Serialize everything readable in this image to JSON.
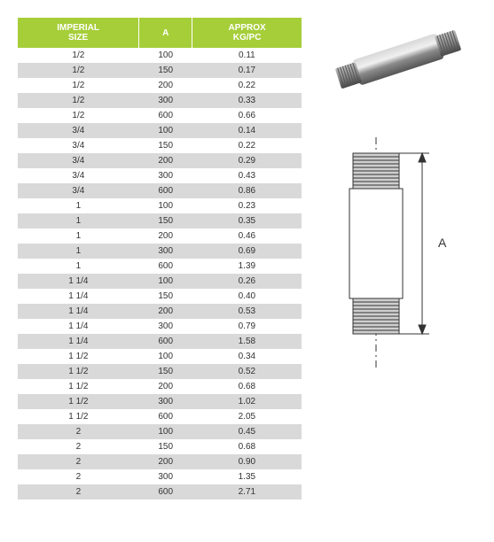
{
  "table": {
    "header_bg": "#a6ce39",
    "header_fg": "#ffffff",
    "row_odd_bg": "#ffffff",
    "row_even_bg": "#d9d9d9",
    "columns": [
      "IMPERIAL\nSIZE",
      "A",
      "APPROX\nKG/PC"
    ],
    "rows": [
      [
        "1/2",
        "100",
        "0.11"
      ],
      [
        "1/2",
        "150",
        "0.17"
      ],
      [
        "1/2",
        "200",
        "0.22"
      ],
      [
        "1/2",
        "300",
        "0.33"
      ],
      [
        "1/2",
        "600",
        "0.66"
      ],
      [
        "3/4",
        "100",
        "0.14"
      ],
      [
        "3/4",
        "150",
        "0.22"
      ],
      [
        "3/4",
        "200",
        "0.29"
      ],
      [
        "3/4",
        "300",
        "0.43"
      ],
      [
        "3/4",
        "600",
        "0.86"
      ],
      [
        "1",
        "100",
        "0.23"
      ],
      [
        "1",
        "150",
        "0.35"
      ],
      [
        "1",
        "200",
        "0.46"
      ],
      [
        "1",
        "300",
        "0.69"
      ],
      [
        "1",
        "600",
        "1.39"
      ],
      [
        "1 1/4",
        "100",
        "0.26"
      ],
      [
        "1 1/4",
        "150",
        "0.40"
      ],
      [
        "1 1/4",
        "200",
        "0.53"
      ],
      [
        "1 1/4",
        "300",
        "0.79"
      ],
      [
        "1 1/4",
        "600",
        "1.58"
      ],
      [
        "1 1/2",
        "100",
        "0.34"
      ],
      [
        "1 1/2",
        "150",
        "0.52"
      ],
      [
        "1 1/2",
        "200",
        "0.68"
      ],
      [
        "1 1/2",
        "300",
        "1.02"
      ],
      [
        "1 1/2",
        "600",
        "2.05"
      ],
      [
        "2",
        "100",
        "0.45"
      ],
      [
        "2",
        "150",
        "0.68"
      ],
      [
        "2",
        "200",
        "0.90"
      ],
      [
        "2",
        "300",
        "1.35"
      ],
      [
        "2",
        "600",
        "2.71"
      ]
    ]
  },
  "diagram": {
    "label": "A",
    "stroke": "#333333",
    "thread_fill": "#bfbfbf",
    "body_fill": "#e6e6e6"
  },
  "photo": {
    "body_fill": "#9a9a9a",
    "body_hi": "#e0e0e0",
    "thread_fill": "#7a7a7a"
  }
}
